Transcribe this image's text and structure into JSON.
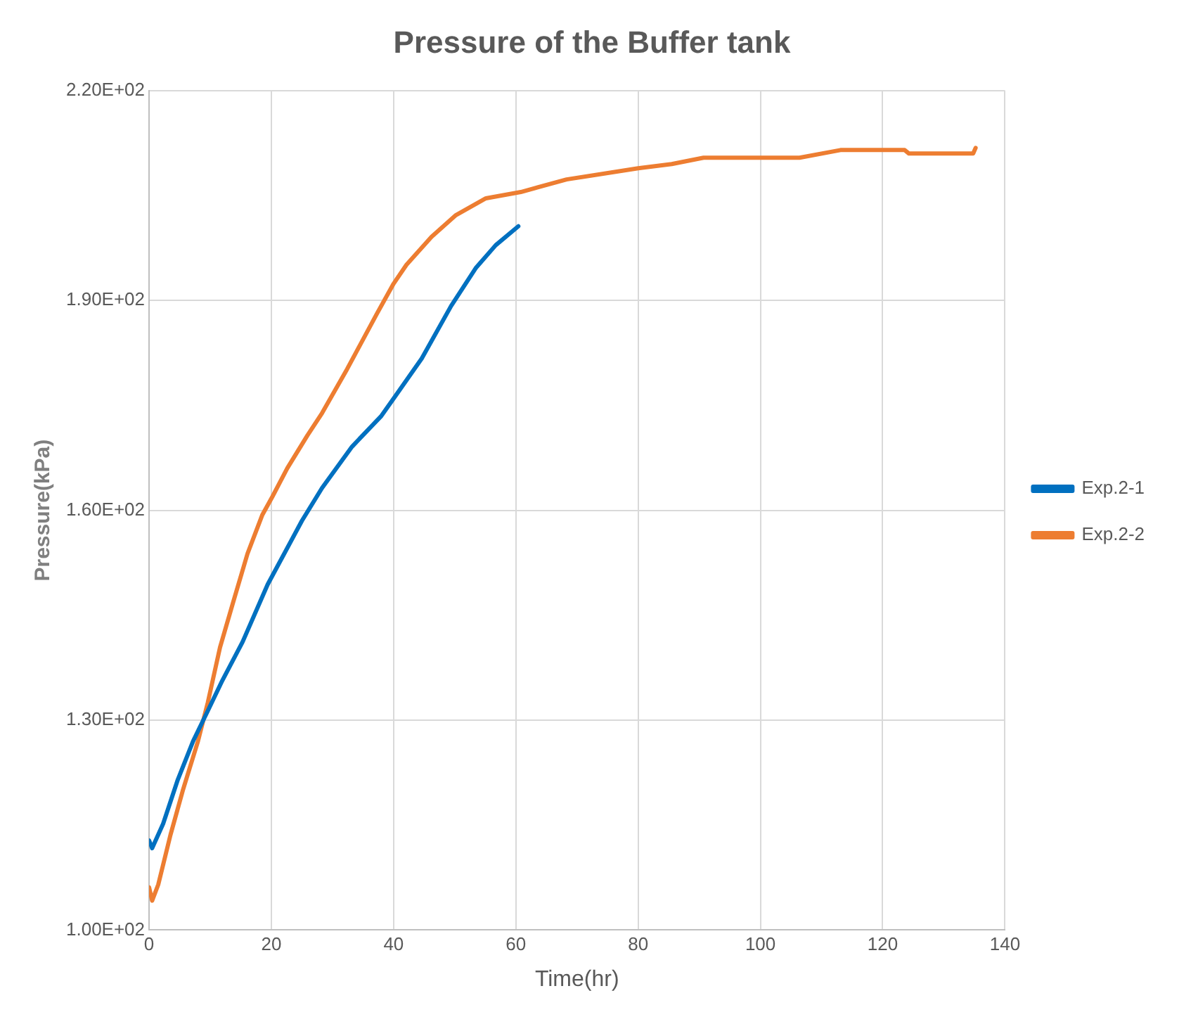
{
  "chart_data": {
    "type": "line",
    "title": "Pressure of the Buffer tank",
    "xlabel": "Time(hr)",
    "ylabel": "Pressure(kPa)",
    "xlim": [
      0,
      140
    ],
    "xticks": [
      0,
      20,
      40,
      60,
      80,
      100,
      120,
      140
    ],
    "ylim": [
      100,
      220
    ],
    "yticks": [
      {
        "value": 100,
        "label": "1.00E+02"
      },
      {
        "value": 130,
        "label": "1.30E+02"
      },
      {
        "value": 160,
        "label": "1.60E+02"
      },
      {
        "value": 190,
        "label": "1.90E+02"
      },
      {
        "value": 220,
        "label": "2.20E+02"
      }
    ],
    "grid": true,
    "legend": "right",
    "marker": "none",
    "line_style": "solid",
    "series": [
      {
        "name": "Exp.2-1",
        "color": "#0070c0",
        "x": [
          0,
          0.5,
          2.3,
          4.7,
          7.2,
          9.2,
          12,
          15.3,
          19.4,
          25,
          28.3,
          33.2,
          38,
          40.5,
          44.6,
          49.4,
          53.5,
          56.7,
          60.4
        ],
        "values": [
          112.8,
          111.7,
          115.2,
          121.5,
          127,
          130.6,
          135.7,
          141.2,
          149.4,
          158.5,
          163.2,
          169.1,
          173.5,
          176.6,
          181.7,
          189.2,
          194.7,
          197.9,
          200.6
        ]
      },
      {
        "name": "Exp.2-2",
        "color": "#ed7d31",
        "x": [
          0,
          0.5,
          1.5,
          3.5,
          5.5,
          8,
          9.6,
          11.6,
          13.7,
          16.1,
          18.5,
          20.2,
          22.6,
          25.9,
          28.3,
          32.4,
          37.2,
          40,
          42.1,
          46.2,
          50.2,
          55.1,
          60.8,
          68.3,
          80,
          85.5,
          90.7,
          106.4,
          113.1,
          123.6,
          124.3,
          134.8,
          135.2
        ],
        "values": [
          106.1,
          104.2,
          106.5,
          113.6,
          119.9,
          127,
          132.5,
          140.4,
          146.7,
          153.8,
          159.3,
          162,
          166,
          170.7,
          173.9,
          180.2,
          188,
          192.4,
          195.1,
          199.1,
          202.2,
          204.6,
          205.5,
          207.3,
          208.9,
          209.5,
          210.4,
          210.4,
          211.5,
          211.5,
          211,
          211,
          211.8
        ]
      }
    ]
  }
}
